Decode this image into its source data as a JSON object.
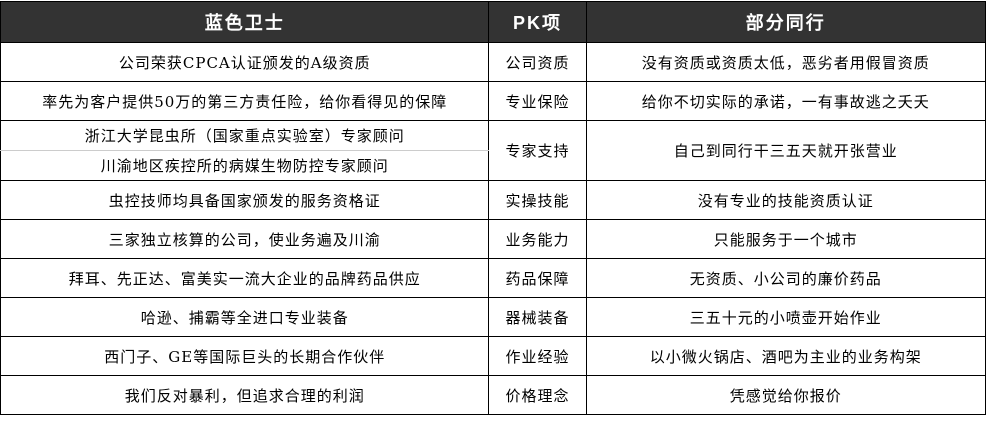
{
  "colors": {
    "header_bg": "#333333",
    "header_text": "#ffffff",
    "border": "#000000",
    "light_divider": "#cccccc",
    "body_bg": "#ffffff",
    "body_text": "#000000"
  },
  "table": {
    "headers": {
      "us": "蓝色卫士",
      "item": "PK项",
      "them": "部分同行"
    },
    "rows": [
      {
        "us": "公司荣获CPCA认证颁发的A级资质",
        "item": "公司资质",
        "them": "没有资质或资质太低，恶劣者用假冒资质"
      },
      {
        "us": "率先为客户提供50万的第三方责任险，给你看得见的保障",
        "item": "专业保险",
        "them": "给你不切实际的承诺，一有事故逃之夭夭"
      },
      {
        "us_line1": "浙江大学昆虫所（国家重点实验室）专家顾问",
        "us_line2": "川渝地区疾控所的病媒生物防控专家顾问",
        "item": "专家支持",
        "them": "自己到同行干三五天就开张营业"
      },
      {
        "us": "虫控技师均具备国家颁发的服务资格证",
        "item": "实操技能",
        "them": "没有专业的技能资质认证"
      },
      {
        "us": "三家独立核算的公司，使业务遍及川渝",
        "item": "业务能力",
        "them": "只能服务于一个城市"
      },
      {
        "us": "拜耳、先正达、富美实一流大企业的品牌药品供应",
        "item": "药品保障",
        "them": "无资质、小公司的廉价药品"
      },
      {
        "us": "哈逊、捕霸等全进口专业装备",
        "item": "器械装备",
        "them": "三五十元的小喷壶开始作业"
      },
      {
        "us": "西门子、GE等国际巨头的长期合作伙伴",
        "item": "作业经验",
        "them": "以小微火锅店、酒吧为主业的业务构架"
      },
      {
        "us": "我们反对暴利，但追求合理的利润",
        "item": "价格理念",
        "them": "凭感觉给你报价"
      }
    ]
  }
}
